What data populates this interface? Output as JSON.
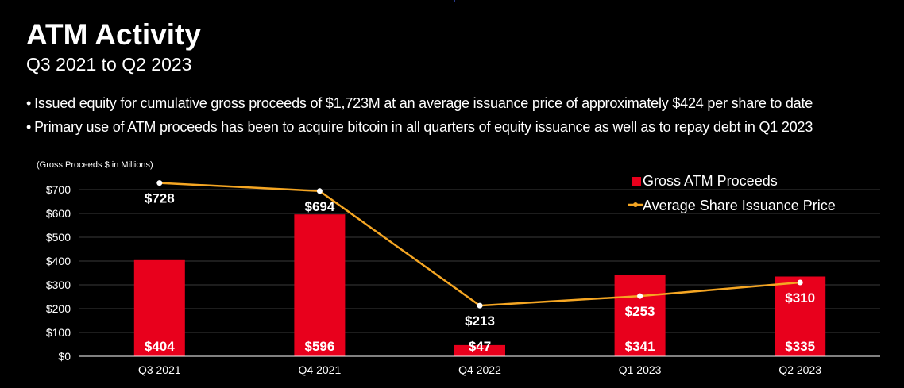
{
  "slide": {
    "title": "ATM Activity",
    "subtitle": "Q3 2021 to Q2 2023",
    "bullet_marker": "•",
    "bullets": [
      "Issued equity for cumulative gross proceeds of $1,723M at an average issuance price of approximately $424 per share to date",
      "Primary use of ATM proceeds has been to acquire bitcoin in all quarters of equity issuance as well as to repay debt in Q1 2023"
    ]
  },
  "colors": {
    "background": "#000000",
    "bar": "#e8001c",
    "line": "#f5a623",
    "marker": "#ffffff",
    "text": "#ffffff",
    "axis": "#ffffff",
    "gridline": "#3a3a3a"
  },
  "chart_data": {
    "type": "bar",
    "unit_note": "(Gross Proceeds $ in Millions)",
    "categories": [
      "Q3 2021",
      "Q4 2021",
      "Q4 2022",
      "Q1 2023",
      "Q2 2023"
    ],
    "series": [
      {
        "name": "Gross ATM Proceeds",
        "kind": "bar",
        "values": [
          404,
          596,
          47,
          341,
          335
        ],
        "labels": [
          "$404",
          "$596",
          "$47",
          "$341",
          "$335"
        ]
      },
      {
        "name": "Average Share Issuance Price",
        "kind": "line",
        "values": [
          728,
          694,
          213,
          253,
          310
        ],
        "labels": [
          "$728",
          "$694",
          "$213",
          "$253",
          "$310"
        ]
      }
    ],
    "ylim": [
      0,
      700
    ],
    "yticks": [
      0,
      100,
      200,
      300,
      400,
      500,
      600,
      700
    ],
    "ytick_labels": [
      "$0",
      "$100",
      "$200",
      "$300",
      "$400",
      "$500",
      "$600",
      "$700"
    ],
    "legend": "top-right",
    "grid": true
  }
}
